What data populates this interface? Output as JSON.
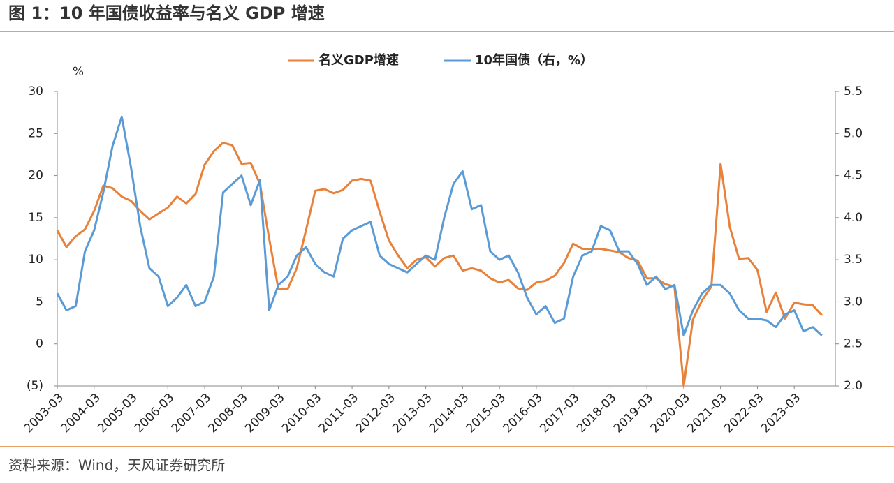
{
  "chart_data": {
    "type": "line",
    "title": "图 1：10 年国债收益率与名义 GDP 增速",
    "source": "资料来源：Wind，天风证券研究所",
    "y_unit": "%",
    "x": [
      "2003-03",
      "2003-06",
      "2003-09",
      "2003-12",
      "2004-03",
      "2004-06",
      "2004-09",
      "2004-12",
      "2005-03",
      "2005-06",
      "2005-09",
      "2005-12",
      "2006-03",
      "2006-06",
      "2006-09",
      "2006-12",
      "2007-03",
      "2007-06",
      "2007-09",
      "2007-12",
      "2008-03",
      "2008-06",
      "2008-09",
      "2008-12",
      "2009-03",
      "2009-06",
      "2009-09",
      "2009-12",
      "2010-03",
      "2010-06",
      "2010-09",
      "2010-12",
      "2011-03",
      "2011-06",
      "2011-09",
      "2011-12",
      "2012-03",
      "2012-06",
      "2012-09",
      "2012-12",
      "2013-03",
      "2013-06",
      "2013-09",
      "2013-12",
      "2014-03",
      "2014-06",
      "2014-09",
      "2014-12",
      "2015-03",
      "2015-06",
      "2015-09",
      "2015-12",
      "2016-03",
      "2016-06",
      "2016-09",
      "2016-12",
      "2017-03",
      "2017-06",
      "2017-09",
      "2017-12",
      "2018-03",
      "2018-06",
      "2018-09",
      "2018-12",
      "2019-03",
      "2019-06",
      "2019-09",
      "2019-12",
      "2020-03",
      "2020-06",
      "2020-09",
      "2020-12",
      "2021-03",
      "2021-06",
      "2021-09",
      "2021-12",
      "2022-03",
      "2022-06",
      "2022-09",
      "2022-12",
      "2023-03",
      "2023-06",
      "2023-09",
      "2023-12"
    ],
    "xticks": [
      "2003-03",
      "2004-03",
      "2005-03",
      "2006-03",
      "2007-03",
      "2008-03",
      "2009-03",
      "2010-03",
      "2011-03",
      "2012-03",
      "2013-03",
      "2014-03",
      "2015-03",
      "2016-03",
      "2017-03",
      "2018-03",
      "2019-03",
      "2020-03",
      "2021-03",
      "2022-03",
      "2023-03"
    ],
    "ylim": [
      -5,
      30
    ],
    "yticks": [
      {
        "value": -5,
        "label": "(5)"
      },
      0,
      5,
      10,
      15,
      20,
      25,
      30
    ],
    "y2lim": [
      2,
      5.5
    ],
    "y2ticks": [
      {
        "value": 2,
        "label": "2.0"
      },
      2.5,
      {
        "value": 3,
        "label": "3.0"
      },
      3.5,
      {
        "value": 4,
        "label": "4.0"
      },
      4.5,
      {
        "value": 5,
        "label": "5.0"
      },
      5.5
    ],
    "series": [
      {
        "name": "名义GDP增速",
        "color": "#E8813A",
        "axis": "y",
        "values": [
          13.5,
          11.5,
          12.8,
          13.6,
          15.8,
          18.8,
          18.5,
          17.5,
          17.0,
          15.8,
          14.8,
          15.5,
          16.2,
          17.5,
          16.7,
          17.8,
          21.3,
          22.9,
          23.9,
          23.6,
          21.4,
          21.5,
          19.0,
          12.5,
          6.5,
          6.5,
          9.0,
          13.5,
          18.2,
          18.4,
          17.9,
          18.3,
          19.4,
          19.6,
          19.4,
          15.7,
          12.3,
          10.5,
          9.0,
          10.0,
          10.3,
          9.2,
          10.2,
          10.5,
          8.7,
          9.0,
          8.7,
          7.8,
          7.3,
          7.6,
          6.6,
          6.4,
          7.3,
          7.5,
          8.1,
          9.6,
          11.9,
          11.3,
          11.3,
          11.3,
          11.1,
          10.9,
          10.2,
          9.9,
          7.8,
          7.8,
          7.1,
          6.8,
          -5.0,
          2.9,
          5.2,
          6.8,
          21.4,
          13.9,
          10.1,
          10.2,
          8.8,
          3.8,
          6.1,
          3.0,
          4.9,
          4.7,
          4.6,
          3.4
        ]
      },
      {
        "name": "10年国债（右，%）",
        "color": "#5B9BD5",
        "axis": "y2",
        "values": [
          3.1,
          2.9,
          2.95,
          3.6,
          3.85,
          4.3,
          4.85,
          5.2,
          4.6,
          3.9,
          3.4,
          3.3,
          2.95,
          3.05,
          3.2,
          2.95,
          3.0,
          3.3,
          4.3,
          4.4,
          4.5,
          4.15,
          4.45,
          2.9,
          3.2,
          3.3,
          3.55,
          3.65,
          3.45,
          3.35,
          3.3,
          3.75,
          3.85,
          3.9,
          3.95,
          3.55,
          3.45,
          3.4,
          3.35,
          3.45,
          3.55,
          3.5,
          4.0,
          4.4,
          4.55,
          4.1,
          4.15,
          3.6,
          3.5,
          3.55,
          3.35,
          3.05,
          2.85,
          2.95,
          2.75,
          2.8,
          3.3,
          3.55,
          3.6,
          3.9,
          3.85,
          3.6,
          3.6,
          3.45,
          3.2,
          3.3,
          3.15,
          3.2,
          2.6,
          2.9,
          3.1,
          3.2,
          3.2,
          3.1,
          2.9,
          2.8,
          2.8,
          2.78,
          2.7,
          2.85,
          2.9,
          2.65,
          2.7,
          2.6
        ]
      }
    ]
  }
}
